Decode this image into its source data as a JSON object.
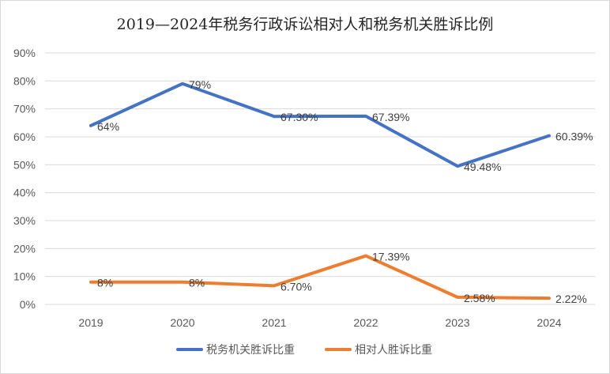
{
  "chart_data": {
    "type": "line",
    "title": "2019—2024年税务行政诉讼相对人和税务机关胜诉比例",
    "categories": [
      "2019",
      "2020",
      "2021",
      "2022",
      "2023",
      "2024"
    ],
    "y_ticks": [
      "0%",
      "10%",
      "20%",
      "30%",
      "40%",
      "50%",
      "60%",
      "70%",
      "80%",
      "90%"
    ],
    "ylim": [
      0,
      90
    ],
    "grid": true,
    "legend_position": "bottom",
    "series": [
      {
        "name": "税务机关胜诉比重",
        "color": "#4472c4",
        "values": [
          64,
          79,
          67.3,
          67.39,
          49.48,
          60.39
        ],
        "labels": [
          "64%",
          "79%",
          "67.30%",
          "67.39%",
          "49.48%",
          "60.39%"
        ]
      },
      {
        "name": "相对人胜诉比重",
        "color": "#ed7d31",
        "values": [
          8,
          8,
          6.7,
          17.39,
          2.58,
          2.22
        ],
        "labels": [
          "8%",
          "8%",
          "6.70%",
          "17.39%",
          "2.58%",
          "2.22%"
        ]
      }
    ]
  }
}
